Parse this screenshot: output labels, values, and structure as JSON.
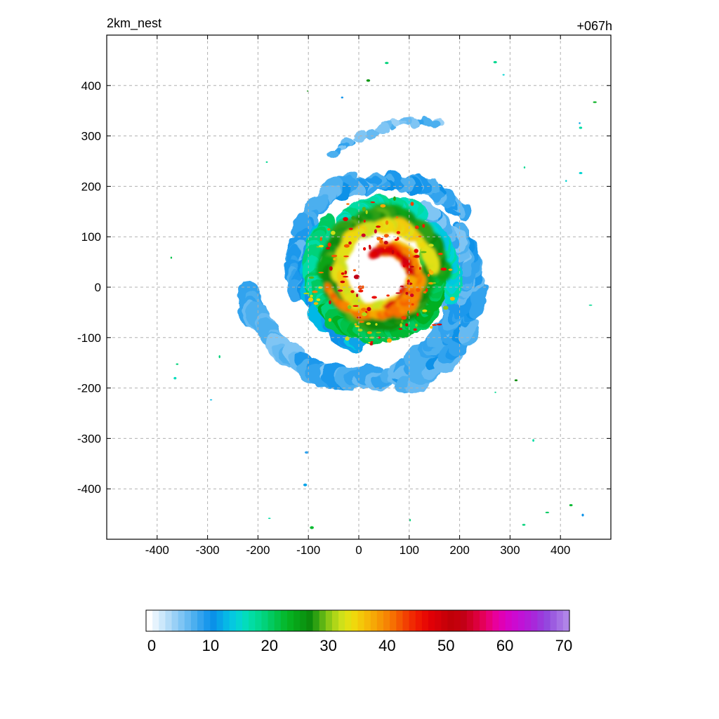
{
  "chart_data": {
    "type": "heatmap",
    "title": "2km_nest",
    "subtitle": "+067h",
    "xlabel": "",
    "ylabel": "",
    "xlim": [
      -500,
      500
    ],
    "ylim": [
      -500,
      500
    ],
    "x_ticks": [
      -400,
      -300,
      -200,
      -100,
      0,
      100,
      200,
      300,
      400
    ],
    "y_ticks": [
      400,
      300,
      200,
      100,
      0,
      -100,
      -200,
      -300,
      -400
    ],
    "grid": true,
    "grid_style": "dashed",
    "colorbar": {
      "orientation": "horizontal",
      "range": [
        0,
        70
      ],
      "ticks": [
        0,
        10,
        20,
        30,
        40,
        50,
        60,
        70
      ],
      "colors": [
        "#ffffff",
        "#e6f3fd",
        "#cce8fb",
        "#b3dcf8",
        "#99d0f6",
        "#7fc5f4",
        "#66baf2",
        "#4cafef",
        "#33a3ee",
        "#1a98ec",
        "#0a91e8",
        "#08a4e8",
        "#06b8e6",
        "#05c8e0",
        "#04d4d2",
        "#03dcbc",
        "#02dca4",
        "#02d890",
        "#02d27a",
        "#02ca60",
        "#03c248",
        "#05b930",
        "#06b020",
        "#07a418",
        "#0a9712",
        "#0c8a0c",
        "#2ea012",
        "#5cb414",
        "#8ac816",
        "#b0d618",
        "#cee01a",
        "#e2e012",
        "#f0d80c",
        "#f4c80a",
        "#f6b808",
        "#f6a806",
        "#f69604",
        "#f68404",
        "#f67002",
        "#f45802",
        "#f24002",
        "#f02a02",
        "#ee1802",
        "#e80a04",
        "#e00006",
        "#d60008",
        "#ca0008",
        "#c00008",
        "#c4000c",
        "#c20016",
        "#d00026",
        "#dc003c",
        "#e40058",
        "#e8007a",
        "#e8009c",
        "#e000b4",
        "#d604c6",
        "#cc0ad0",
        "#c012d6",
        "#b41cd8",
        "#a828da",
        "#9c38dc",
        "#9448de",
        "#9c5ce0",
        "#a670e4",
        "#b084e8"
      ]
    },
    "feature": {
      "kind": "tropical cyclone precipitation / reflectivity field",
      "eye_center": [
        45,
        30
      ],
      "eye_radius": 28
    }
  },
  "labels": {
    "title": "2km_nest",
    "time": "+067h"
  }
}
